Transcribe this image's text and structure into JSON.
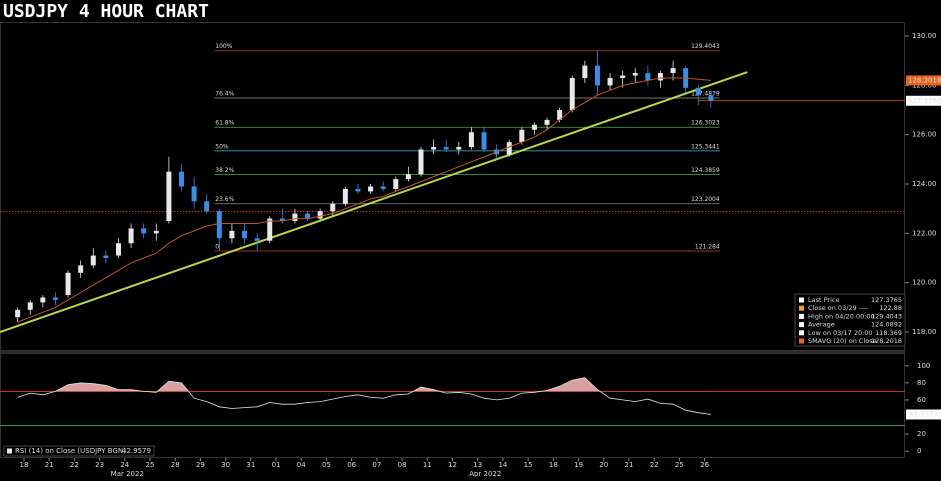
{
  "chart_data": [
    {
      "type": "candlestick",
      "title": "USDJPY 4 HOUR CHART",
      "xlim": [
        -1.4,
        70.4
      ],
      "xticks": [
        {
          "value": 0.5,
          "label": "18"
        },
        {
          "value": 2.5,
          "label": "21"
        },
        {
          "value": 4.5,
          "label": "22"
        },
        {
          "value": 6.5,
          "label": "23"
        },
        {
          "value": 8.5,
          "label": "24"
        },
        {
          "value": 10.5,
          "label": "25"
        },
        {
          "value": 12.5,
          "label": "28"
        },
        {
          "value": 14.5,
          "label": "29"
        },
        {
          "value": 16.5,
          "label": "30"
        },
        {
          "value": 18.5,
          "label": "31"
        },
        {
          "value": 20.5,
          "label": "01"
        },
        {
          "value": 22.5,
          "label": "04"
        },
        {
          "value": 24.5,
          "label": "05"
        },
        {
          "value": 26.5,
          "label": "06"
        },
        {
          "value": 28.5,
          "label": "07"
        },
        {
          "value": 30.5,
          "label": "08"
        },
        {
          "value": 32.5,
          "label": "11"
        },
        {
          "value": 34.5,
          "label": "12"
        },
        {
          "value": 36.5,
          "label": "13"
        },
        {
          "value": 38.5,
          "label": "14"
        },
        {
          "value": 40.5,
          "label": "15"
        },
        {
          "value": 42.5,
          "label": "18"
        },
        {
          "value": 44.5,
          "label": "19"
        },
        {
          "value": 46.5,
          "label": "20"
        },
        {
          "value": 48.5,
          "label": "21"
        },
        {
          "value": 50.5,
          "label": "22"
        },
        {
          "value": 52.5,
          "label": "25"
        },
        {
          "value": 54.5,
          "label": "26"
        }
      ],
      "month_labels": [
        {
          "value": 8.7,
          "label": "Mar 2022"
        },
        {
          "value": 37.1,
          "label": "Apr 2022"
        }
      ],
      "ylim": [
        117.27,
        130.57
      ],
      "yticks": [
        {
          "value": 118,
          "label": "118.00"
        },
        {
          "value": 120,
          "label": "120.00"
        },
        {
          "value": 122,
          "label": "122.00"
        },
        {
          "value": 124,
          "label": "124.00"
        },
        {
          "value": 126,
          "label": "126.00"
        },
        {
          "value": 128,
          "label": "128.00"
        },
        {
          "value": 130,
          "label": "130.00"
        }
      ],
      "series": [
        {
          "name": "USDJPY",
          "up_color": "#e8e8e8",
          "down_color": "#3a8ee6",
          "open": [
            118.6,
            118.9,
            119.2,
            119.4,
            119.5,
            120.4,
            120.7,
            121.1,
            121.1,
            121.6,
            122.2,
            122.0,
            122.5,
            124.5,
            123.9,
            123.3,
            122.9,
            121.8,
            122.1,
            121.8,
            121.7,
            122.6,
            122.5,
            122.8,
            122.6,
            122.9,
            123.2,
            123.8,
            123.7,
            123.9,
            123.8,
            124.2,
            124.4,
            125.4,
            125.5,
            125.4,
            125.5,
            126.1,
            125.4,
            125.2,
            125.7,
            126.2,
            126.4,
            126.6,
            127.0,
            128.3,
            128.8,
            128.0,
            128.3,
            128.4,
            128.5,
            128.2,
            128.5,
            128.7,
            127.9,
            127.6
          ],
          "high": [
            119.0,
            119.3,
            119.5,
            119.6,
            120.5,
            120.9,
            121.4,
            121.3,
            121.8,
            122.4,
            122.4,
            122.4,
            125.1,
            124.8,
            124.3,
            123.6,
            123.0,
            122.4,
            122.4,
            122.0,
            122.7,
            123.0,
            123.0,
            122.9,
            123.0,
            123.3,
            123.9,
            124.0,
            124.0,
            124.1,
            124.3,
            124.7,
            125.5,
            125.8,
            125.8,
            125.7,
            126.3,
            126.3,
            125.6,
            125.8,
            126.3,
            126.5,
            126.7,
            127.1,
            128.4,
            129.0,
            129.4043,
            128.5,
            128.6,
            128.7,
            128.8,
            128.6,
            129.0,
            128.8,
            128.0,
            127.8
          ],
          "low": [
            118.4,
            118.7,
            119.0,
            119.1,
            119.4,
            120.2,
            120.6,
            120.8,
            121.0,
            121.4,
            121.8,
            121.7,
            122.4,
            123.7,
            123.0,
            122.8,
            121.3,
            121.6,
            121.6,
            121.3,
            121.6,
            122.4,
            122.4,
            122.5,
            122.5,
            122.7,
            123.1,
            123.6,
            123.6,
            123.7,
            123.7,
            124.1,
            124.3,
            125.2,
            125.3,
            125.2,
            125.4,
            125.3,
            125.0,
            125.1,
            125.6,
            126.0,
            126.2,
            126.5,
            126.9,
            128.1,
            127.6,
            127.8,
            127.9,
            128.1,
            128.0,
            127.9,
            128.2,
            127.7,
            127.2,
            127.1
          ],
          "close": [
            118.9,
            119.2,
            119.4,
            119.3,
            120.4,
            120.7,
            121.1,
            121.0,
            121.6,
            122.2,
            122.0,
            122.1,
            124.5,
            123.9,
            123.3,
            122.9,
            121.8,
            122.1,
            121.8,
            121.7,
            122.6,
            122.5,
            122.8,
            122.6,
            122.9,
            123.2,
            123.8,
            123.7,
            123.9,
            123.8,
            124.2,
            124.4,
            125.4,
            125.5,
            125.4,
            125.5,
            126.1,
            125.4,
            125.2,
            125.7,
            126.2,
            126.4,
            126.6,
            127.0,
            128.3,
            128.8,
            128.0,
            128.3,
            128.4,
            128.5,
            128.2,
            128.5,
            128.7,
            127.9,
            127.6,
            127.3765
          ]
        }
      ],
      "sma": {
        "color": "#c0552a",
        "values": [
          118.4,
          118.6,
          118.8,
          119.0,
          119.3,
          119.6,
          119.9,
          120.2,
          120.5,
          120.8,
          121.0,
          121.2,
          121.6,
          121.9,
          122.1,
          122.3,
          122.4,
          122.4,
          122.4,
          122.4,
          122.5,
          122.5,
          122.6,
          122.6,
          122.7,
          122.8,
          123.0,
          123.2,
          123.4,
          123.5,
          123.7,
          123.9,
          124.1,
          124.3,
          124.5,
          124.7,
          124.9,
          125.1,
          125.3,
          125.5,
          125.7,
          125.9,
          126.2,
          126.6,
          127.0,
          127.3,
          127.6,
          127.8,
          128.0,
          128.1,
          128.2,
          128.3,
          128.3,
          128.3,
          128.25,
          128.2018
        ]
      },
      "trendline": {
        "color": "#b8d84a",
        "x": [
          -1.4,
          57.9
        ],
        "y": [
          118.0,
          128.54
        ]
      },
      "fib": {
        "x": [
          15.6,
          55.7
        ],
        "levels": [
          {
            "label": "100%",
            "value": 129.4043,
            "color": "#d03a30"
          },
          {
            "label": "76.4%",
            "value": 127.4879,
            "color": "#9a9a9a"
          },
          {
            "label": "61.8%",
            "value": 126.3023,
            "color": "#4fb04f"
          },
          {
            "label": "50%",
            "value": 125.3441,
            "color": "#39c6d0"
          },
          {
            "label": "38.2%",
            "value": 124.3859,
            "color": "#4fb04f"
          },
          {
            "label": "23.6%",
            "value": 123.2004,
            "color": "#8a8a8a"
          },
          {
            "label": "0",
            "value": 121.284,
            "color": "#d03a30"
          }
        ]
      },
      "legend": [
        {
          "label": "Last Price",
          "value": 127.3765,
          "color": "#ffffff"
        },
        {
          "label": "Close on 03/29 ----",
          "value": 122.88,
          "color": "#f0a020"
        },
        {
          "label": "High on 04/20 00:00",
          "value": 129.4043,
          "color": "#ffffff"
        },
        {
          "label": "Average",
          "value": 124.0892,
          "color": "#ffffff"
        },
        {
          "label": "Low on 03/17 20:00",
          "value": 118.369,
          "color": "#ffffff"
        },
        {
          "label": "SMAVG (20) on Close",
          "value": 128.2018,
          "color": "#e8641e"
        }
      ]
    },
    {
      "type": "line",
      "series": [
        {
          "name": "RSI (14) on Close (USDJPY BGN)",
          "color": "#e6e6e6",
          "values": [
            63,
            68,
            66,
            70,
            78,
            80,
            79,
            77,
            72,
            72,
            70,
            69,
            82,
            80,
            62,
            58,
            52,
            50,
            51,
            52,
            57,
            55,
            55,
            57,
            58,
            61,
            64,
            66,
            63,
            62,
            66,
            67,
            75,
            72,
            68,
            69,
            67,
            62,
            60,
            62,
            68,
            69,
            71,
            76,
            83,
            86,
            72,
            62,
            60,
            58,
            61,
            56,
            55,
            48,
            45,
            42.9579
          ]
        }
      ],
      "ylim": [
        -8,
        113.8
      ],
      "yticks": [
        0,
        20,
        60,
        80,
        100
      ],
      "levels": [
        {
          "value": 70,
          "color": "#d03a30"
        },
        {
          "value": 30,
          "color": "#2e9a57"
        }
      ],
      "fill_color": "#d9a0a0"
    }
  ]
}
